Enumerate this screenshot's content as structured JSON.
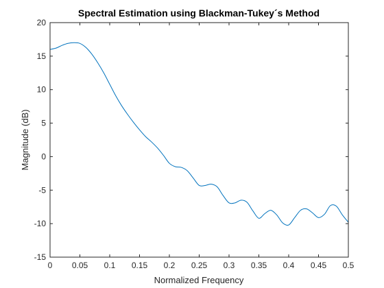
{
  "chart_data": {
    "type": "line",
    "title": "Spectral Estimation using Blackman-Tukey´s Method",
    "xlabel": "Normalized Frequency",
    "ylabel": "Magnitude (dB)",
    "xlim": [
      0,
      0.5
    ],
    "ylim": [
      -15,
      20
    ],
    "xticks": [
      0,
      0.05,
      0.1,
      0.15,
      0.2,
      0.25,
      0.3,
      0.35,
      0.4,
      0.45,
      0.5
    ],
    "xtick_labels": [
      "0",
      "0.05",
      "0.1",
      "0.15",
      "0.2",
      "0.25",
      "0.3",
      "0.35",
      "0.4",
      "0.45",
      "0.5"
    ],
    "yticks": [
      -15,
      -10,
      -5,
      0,
      5,
      10,
      15,
      20
    ],
    "ytick_labels": [
      "-15",
      "-10",
      "-5",
      "0",
      "5",
      "10",
      "15",
      "20"
    ],
    "grid": false,
    "series": [
      {
        "color": "#0072bd",
        "x": [
          0,
          0.01,
          0.02,
          0.03,
          0.04,
          0.05,
          0.06,
          0.07,
          0.08,
          0.09,
          0.1,
          0.11,
          0.12,
          0.13,
          0.14,
          0.15,
          0.16,
          0.17,
          0.18,
          0.19,
          0.2,
          0.21,
          0.22,
          0.23,
          0.24,
          0.25,
          0.26,
          0.27,
          0.28,
          0.29,
          0.3,
          0.31,
          0.32,
          0.33,
          0.34,
          0.35,
          0.36,
          0.37,
          0.38,
          0.39,
          0.4,
          0.41,
          0.42,
          0.43,
          0.44,
          0.45,
          0.46,
          0.47,
          0.48,
          0.49,
          0.5
        ],
        "y": [
          16.0,
          16.2,
          16.6,
          16.9,
          17.0,
          16.9,
          16.3,
          15.3,
          14.0,
          12.5,
          10.8,
          9.1,
          7.6,
          6.3,
          5.1,
          4.0,
          3.0,
          2.2,
          1.3,
          0.2,
          -1.0,
          -1.5,
          -1.6,
          -2.1,
          -3.2,
          -4.3,
          -4.3,
          -4.1,
          -4.5,
          -5.8,
          -6.9,
          -6.9,
          -6.5,
          -6.8,
          -8.1,
          -9.2,
          -8.5,
          -8.0,
          -8.7,
          -9.9,
          -10.2,
          -9.1,
          -8.0,
          -7.8,
          -8.4,
          -9.1,
          -8.6,
          -7.3,
          -7.4,
          -8.7,
          -9.8
        ]
      }
    ]
  }
}
